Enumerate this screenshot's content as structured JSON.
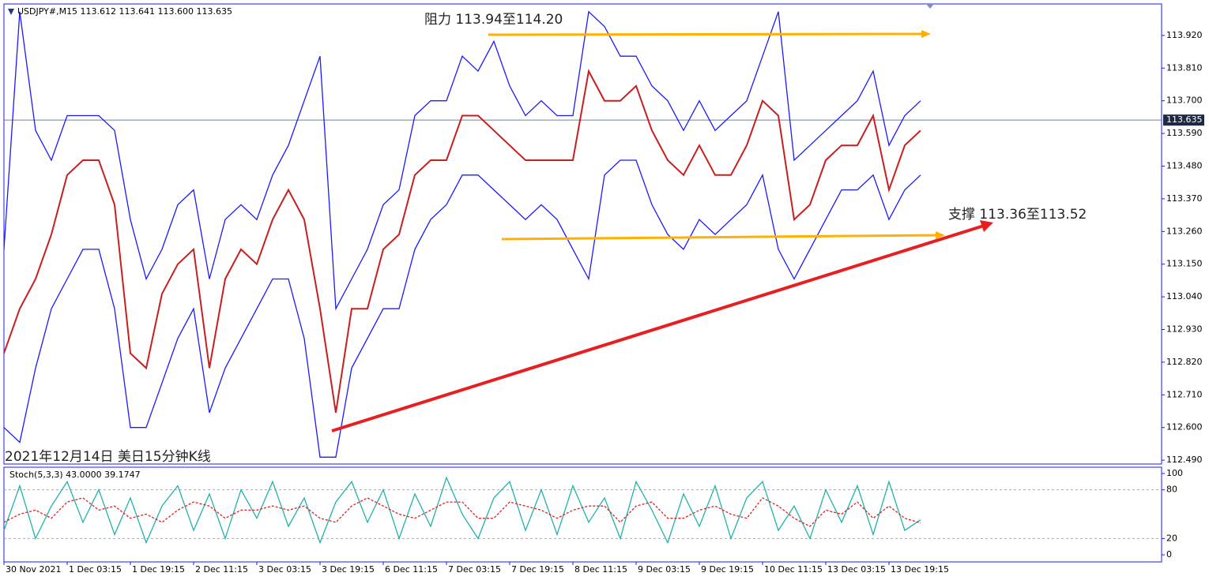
{
  "chart_data": [
    {
      "type": "line",
      "header": "USDJPY#,M15  113.612 113.641 113.600 113.635",
      "annotations": [
        "阻力 113.94至114.20",
        "支撑 113.36至113.52",
        "2021年12月14日 美日15分钟K线"
      ],
      "x": [
        0,
        16,
        32,
        48,
        64,
        80,
        96,
        112,
        128,
        144,
        160,
        176,
        192,
        208,
        224,
        240,
        256,
        272,
        288,
        304,
        320,
        336,
        352,
        368,
        384,
        400,
        416,
        432,
        448,
        464,
        480,
        496,
        512,
        528,
        544,
        560,
        576,
        592,
        608,
        624,
        640,
        656,
        672,
        688,
        704,
        720,
        736,
        752,
        768,
        784,
        800,
        816,
        832,
        848,
        864,
        880,
        896,
        912,
        928
      ],
      "series": [
        {
          "name": "Close",
          "color": "#c81e1e",
          "values": [
            112.85,
            113.0,
            113.1,
            113.25,
            113.45,
            113.5,
            113.5,
            113.35,
            112.85,
            112.8,
            113.05,
            113.15,
            113.2,
            112.8,
            113.1,
            113.2,
            113.15,
            113.3,
            113.4,
            113.3,
            113.0,
            112.65,
            113.0,
            113.0,
            113.2,
            113.25,
            113.45,
            113.5,
            113.5,
            113.65,
            113.65,
            113.6,
            113.55,
            113.5,
            113.5,
            113.5,
            113.5,
            113.8,
            113.7,
            113.7,
            113.75,
            113.6,
            113.5,
            113.45,
            113.55,
            113.45,
            113.45,
            113.55,
            113.7,
            113.65,
            113.3,
            113.35,
            113.5,
            113.55,
            113.55,
            113.65,
            113.4,
            113.55,
            113.6
          ]
        },
        {
          "name": "Upper",
          "color": "#1a1aff",
          "values": [
            113.2,
            114.0,
            113.6,
            113.5,
            113.65,
            113.65,
            113.65,
            113.6,
            113.3,
            113.1,
            113.2,
            113.35,
            113.4,
            113.1,
            113.3,
            113.35,
            113.3,
            113.45,
            113.55,
            113.7,
            113.85,
            113.0,
            113.1,
            113.2,
            113.35,
            113.4,
            113.65,
            113.7,
            113.7,
            113.85,
            113.8,
            113.9,
            113.75,
            113.65,
            113.7,
            113.65,
            113.65,
            114.0,
            113.95,
            113.85,
            113.85,
            113.75,
            113.7,
            113.6,
            113.7,
            113.6,
            113.65,
            113.7,
            113.85,
            114.0,
            113.5,
            113.55,
            113.6,
            113.65,
            113.7,
            113.8,
            113.55,
            113.65,
            113.7
          ]
        },
        {
          "name": "Lower",
          "color": "#1a1aff",
          "values": [
            112.6,
            112.55,
            112.8,
            113.0,
            113.1,
            113.2,
            113.2,
            113.0,
            112.6,
            112.6,
            112.75,
            112.9,
            113.0,
            112.65,
            112.8,
            112.9,
            113.0,
            113.1,
            113.1,
            112.9,
            112.5,
            112.5,
            112.8,
            112.9,
            113.0,
            113.0,
            113.2,
            113.3,
            113.35,
            113.45,
            113.45,
            113.4,
            113.35,
            113.3,
            113.35,
            113.3,
            113.2,
            113.1,
            113.45,
            113.5,
            113.5,
            113.35,
            113.25,
            113.2,
            113.3,
            113.25,
            113.3,
            113.35,
            113.45,
            113.2,
            113.1,
            113.2,
            113.3,
            113.4,
            113.4,
            113.45,
            113.3,
            113.4,
            113.45
          ]
        }
      ],
      "last_price": 113.635,
      "xlim": [
        0,
        1172
      ],
      "ylim": [
        112.477,
        114.026
      ],
      "yticks": [
        {
          "value": 113.92,
          "label": "113.920"
        },
        {
          "value": 113.81,
          "label": "113.810"
        },
        {
          "value": 113.7,
          "label": "113.700"
        },
        {
          "value": 113.59,
          "label": "113.590"
        },
        {
          "value": 113.48,
          "label": "113.480"
        },
        {
          "value": 113.37,
          "label": "113.370"
        },
        {
          "value": 113.26,
          "label": "113.260"
        },
        {
          "value": 113.15,
          "label": "113.150"
        },
        {
          "value": 113.04,
          "label": "113.040"
        },
        {
          "value": 112.93,
          "label": "112.930"
        },
        {
          "value": 112.82,
          "label": "112.820"
        },
        {
          "value": 112.71,
          "label": "112.710"
        },
        {
          "value": 112.6,
          "label": "112.600"
        },
        {
          "value": 112.49,
          "label": "112.490"
        }
      ]
    },
    {
      "type": "line",
      "title": "Stoch(5,3,3) 43.0000 39.1747",
      "x": [
        0,
        16,
        32,
        48,
        64,
        80,
        96,
        112,
        128,
        144,
        160,
        176,
        192,
        208,
        224,
        240,
        256,
        272,
        288,
        304,
        320,
        336,
        352,
        368,
        384,
        400,
        416,
        432,
        448,
        464,
        480,
        496,
        512,
        528,
        544,
        560,
        576,
        592,
        608,
        624,
        640,
        656,
        672,
        688,
        704,
        720,
        736,
        752,
        768,
        784,
        800,
        816,
        832,
        848,
        864,
        880,
        896,
        912,
        928
      ],
      "series": [
        {
          "name": "Main",
          "color": "#20b2aa",
          "values": [
            30,
            85,
            20,
            60,
            90,
            40,
            80,
            25,
            70,
            15,
            60,
            85,
            30,
            75,
            20,
            80,
            45,
            90,
            35,
            70,
            15,
            65,
            90,
            40,
            80,
            20,
            75,
            35,
            95,
            50,
            20,
            70,
            90,
            30,
            80,
            25,
            85,
            40,
            70,
            20,
            90,
            55,
            15,
            75,
            35,
            85,
            20,
            70,
            90,
            30,
            60,
            20,
            80,
            40,
            85,
            25,
            90,
            30,
            43
          ]
        },
        {
          "name": "Signal",
          "color": "#e02020",
          "values": [
            40,
            50,
            55,
            45,
            65,
            70,
            55,
            60,
            45,
            50,
            40,
            55,
            65,
            60,
            45,
            55,
            55,
            60,
            55,
            60,
            45,
            40,
            60,
            70,
            60,
            50,
            45,
            55,
            65,
            65,
            45,
            45,
            65,
            60,
            55,
            45,
            55,
            60,
            60,
            40,
            60,
            65,
            45,
            45,
            55,
            60,
            50,
            45,
            70,
            60,
            45,
            35,
            55,
            50,
            65,
            45,
            60,
            45,
            39.1747
          ]
        }
      ],
      "levels": [
        20,
        80
      ],
      "xlim": [
        0,
        1172
      ],
      "ylim": [
        -8.7,
        106.8
      ],
      "yticks": [
        0,
        20,
        80,
        100
      ],
      "xticks": [
        {
          "value": 0,
          "label": "30 Nov 2021"
        },
        {
          "value": 64,
          "label": "1 Dec 03:15"
        },
        {
          "value": 128,
          "label": "1 Dec 19:15"
        },
        {
          "value": 192,
          "label": "2 Dec 11:15"
        },
        {
          "value": 256,
          "label": "3 Dec 03:15"
        },
        {
          "value": 320,
          "label": "3 Dec 19:15"
        },
        {
          "value": 384,
          "label": "6 Dec 11:15"
        },
        {
          "value": 448,
          "label": "7 Dec 03:15"
        },
        {
          "value": 512,
          "label": "7 Dec 19:15"
        },
        {
          "value": 576,
          "label": "8 Dec 11:15"
        },
        {
          "value": 640,
          "label": "9 Dec 03:15"
        },
        {
          "value": 704,
          "label": "9 Dec 19:15"
        },
        {
          "value": 768,
          "label": "10 Dec 11:15"
        },
        {
          "value": 832,
          "label": "13 Dec 03:15"
        },
        {
          "value": 896,
          "label": "13 Dec 19:15"
        }
      ]
    }
  ]
}
